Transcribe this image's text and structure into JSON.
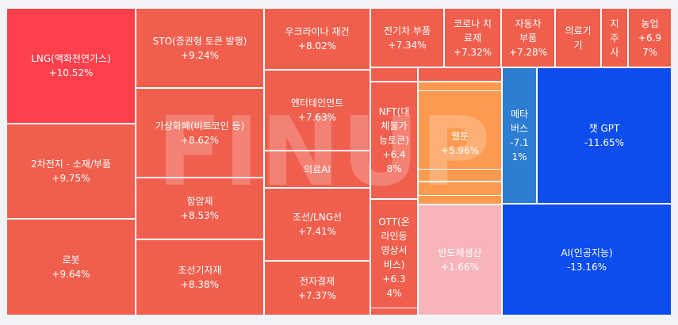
{
  "chart_data": {
    "type": "treemap",
    "unit": "%",
    "items": [
      {
        "name": "LNG(액화천연가스)",
        "label": "LNG(액화천연가스)",
        "change": "+10.52%",
        "value": 10.52,
        "color": "#fe3f4c"
      },
      {
        "name": "2차전지 - 소재/부품",
        "label": "2차전지 - 소재/부품",
        "change": "+9.75%",
        "value": 9.75,
        "color": "#f05f4d"
      },
      {
        "name": "로봇",
        "label": "로봇",
        "change": "+9.64%",
        "value": 9.64,
        "color": "#f05f4d"
      },
      {
        "name": "STO(증권형 토큰 발행)",
        "label": "STO(증권형 토큰 발행)",
        "change": "+9.24%",
        "value": 9.24,
        "color": "#f05f4d"
      },
      {
        "name": "가상화폐(비트코인 등)",
        "label": "가상화폐(비트코인 등)",
        "change": "+8.62%",
        "value": 8.62,
        "color": "#f05f4d"
      },
      {
        "name": "항암제",
        "label": "항암제",
        "change": "+8.53%",
        "value": 8.53,
        "color": "#f05f4d"
      },
      {
        "name": "조선기자재",
        "label": "조선기자재",
        "change": "+8.38%",
        "value": 8.38,
        "color": "#f05f4d"
      },
      {
        "name": "우크라이나 재건",
        "label": "우크라이나 재건",
        "change": "+8.02%",
        "value": 8.02,
        "color": "#f05f4d"
      },
      {
        "name": "엔터테인먼트",
        "label": "엔터테인먼트",
        "change": "+7.63%",
        "value": 7.63,
        "color": "#f05f4d"
      },
      {
        "name": "의료AI",
        "label": "의료AI",
        "change": "",
        "value": null,
        "color": "#f05f4d"
      },
      {
        "name": "조선/LNG선",
        "label": "조선/LNG선",
        "change": "+7.41%",
        "value": 7.41,
        "color": "#f05f4d"
      },
      {
        "name": "전자결제",
        "label": "전자결제",
        "change": "+7.37%",
        "value": 7.37,
        "color": "#f05f4d"
      },
      {
        "name": "전기차 부품",
        "label": "전기차 부품",
        "change": "+7.34%",
        "value": 7.34,
        "color": "#f05f4d"
      },
      {
        "name": "코로나 치료제",
        "label": "코로나 치\n료제",
        "change": "+7.32%",
        "value": 7.32,
        "color": "#f05f4d"
      },
      {
        "name": "자동차 부품",
        "label": "자동차\n부품",
        "change": "+7.28%",
        "value": 7.28,
        "color": "#f05f4d"
      },
      {
        "name": "의료기기",
        "label": "의료기\n기",
        "change": "",
        "value": null,
        "color": "#f05f4d"
      },
      {
        "name": "지주사",
        "label": "지\n주\n사",
        "change": "",
        "value": null,
        "color": "#f05f4d"
      },
      {
        "name": "농업",
        "label": "농업",
        "change": "+6.9\n7%",
        "value": 6.97,
        "color": "#f05f4d"
      },
      {
        "name": "NFT(대체불가능토큰)",
        "label": "NFT(대\n체불가\n능토큰)",
        "change": "+6.4\n8%",
        "value": 6.48,
        "color": "#f05f4d"
      },
      {
        "name": "OTT(온라인동영상서비스)",
        "label": "OTT(온\n라인동\n영상서\n비스)",
        "change": "+6.3\n4%",
        "value": 6.34,
        "color": "#f05f4d"
      },
      {
        "name": "웹툰",
        "label": "웹툰",
        "change": "+5.96%",
        "value": 5.96,
        "color": "#fd9a4f"
      },
      {
        "name": "반도체생산",
        "label": "반도체생산",
        "change": "+1.66%",
        "value": 1.66,
        "color": "#f7b5bb"
      },
      {
        "name": "메타버스",
        "label": "메타\n버스",
        "change": "-7.1\n1%",
        "value": -7.11,
        "color": "#2d7dd2"
      },
      {
        "name": "챗 GPT",
        "label": "챗 GPT",
        "change": "-11.65%",
        "value": -11.65,
        "color": "#0d4ded"
      },
      {
        "name": "AI(인공지능)",
        "label": "AI(인공지능)",
        "change": "-13.16%",
        "value": -13.16,
        "color": "#0d4ded"
      }
    ],
    "unlabeled_tile_colors": [
      "#f05f4d",
      "#fd9a4f"
    ]
  },
  "watermark": "FINUP"
}
